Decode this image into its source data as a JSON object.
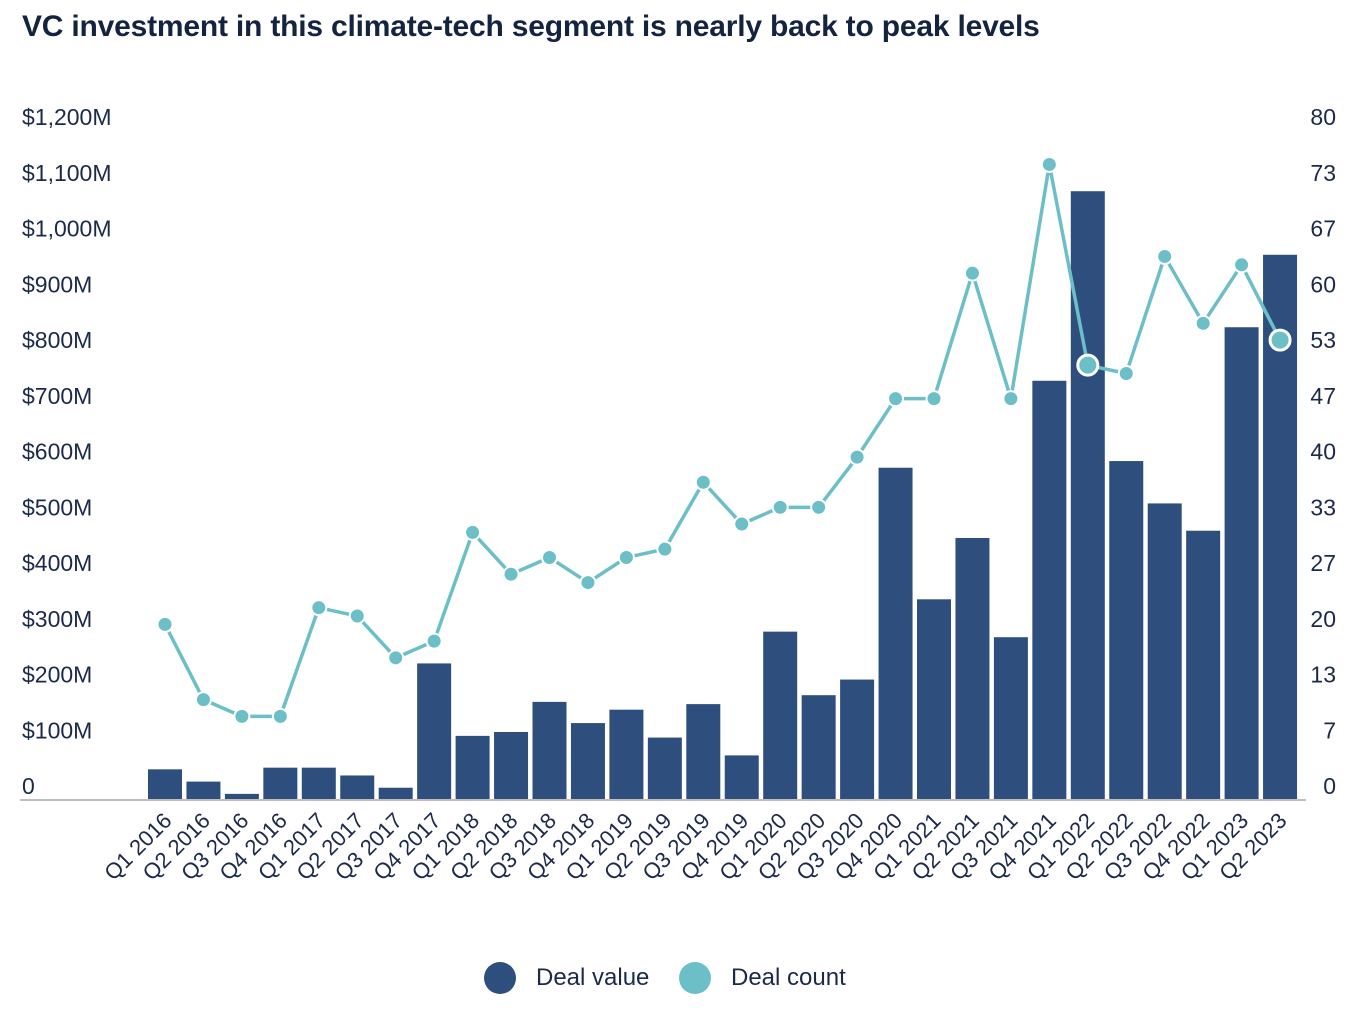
{
  "title": "VC investment in this climate-tech segment is nearly back to peak levels",
  "colors": {
    "bar": "#2e4f7e",
    "line": "#6cbfc6",
    "axis": "#bfbfbf",
    "text": "#1b2a4a"
  },
  "legend": {
    "deal_value": "Deal value",
    "deal_count": "Deal count"
  },
  "chart_data": {
    "type": "bar",
    "title": "VC investment in this climate-tech segment is nearly back to peak levels",
    "xlabel": "",
    "categories": [
      "Q1 2016",
      "Q2 2016",
      "Q3 2016",
      "Q4 2016",
      "Q1 2017",
      "Q2 2017",
      "Q3 2017",
      "Q4 2017",
      "Q1 2018",
      "Q2 2018",
      "Q3 2018",
      "Q4 2018",
      "Q1 2019",
      "Q2 2019",
      "Q3 2019",
      "Q4 2019",
      "Q1 2020",
      "Q2 2020",
      "Q3 2020",
      "Q4 2020",
      "Q1 2021",
      "Q2 2021",
      "Q3 2021",
      "Q4 2021",
      "Q1 2022",
      "Q2 2022",
      "Q3 2022",
      "Q4 2022",
      "Q1 2023",
      "Q2 2023"
    ],
    "y_left": {
      "ticks": [
        "0",
        "$100M",
        "$200M",
        "$300M",
        "$400M",
        "$500M",
        "$600M",
        "$700M",
        "$800M",
        "$900M",
        "$1,000M",
        "$1,100M",
        "$1,200M"
      ],
      "ylim": [
        0,
        1200
      ]
    },
    "y_right": {
      "ticks": [
        "0",
        "7",
        "13",
        "20",
        "27",
        "33",
        "40",
        "47",
        "53",
        "60",
        "67",
        "73",
        "80"
      ],
      "ylim": [
        0,
        80
      ]
    },
    "legend_position": "bottom-center",
    "grid": false,
    "series": [
      {
        "name": "Deal value",
        "type": "bar",
        "axis": "left",
        "values": [
          55,
          33,
          11,
          58,
          58,
          44,
          22,
          245,
          115,
          122,
          176,
          138,
          162,
          112,
          172,
          80,
          302,
          188,
          216,
          596,
          360,
          470,
          292,
          752,
          1092,
          608,
          532,
          483,
          848,
          978
        ]
      },
      {
        "name": "Deal count",
        "type": "line",
        "axis": "right",
        "values": [
          21,
          12,
          10,
          10,
          23,
          22,
          17,
          19,
          32,
          27,
          29,
          26,
          29,
          30,
          38,
          33,
          35,
          35,
          41,
          48,
          48,
          63,
          48,
          76,
          52,
          51,
          65,
          57,
          64,
          55
        ],
        "highlighted": [
          "Q1 2022",
          "Q2 2023"
        ]
      }
    ]
  }
}
